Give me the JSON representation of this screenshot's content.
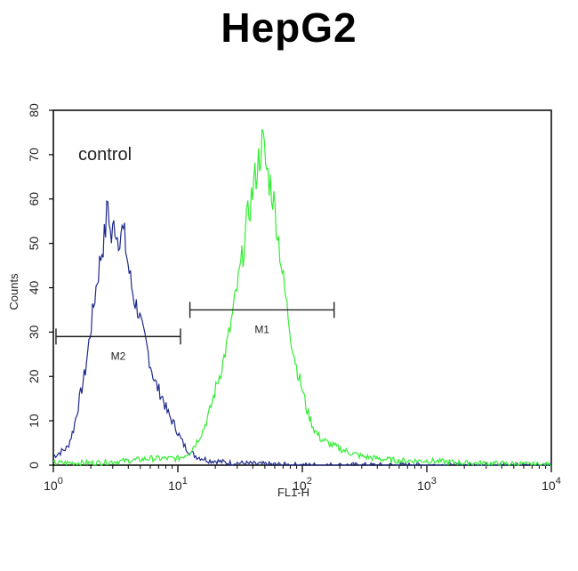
{
  "chart_data": {
    "type": "line",
    "title": "HepG2",
    "xlabel": "FL1-H",
    "ylabel": "Counts",
    "x_scale": "log",
    "xlim": [
      1,
      10000
    ],
    "ylim": [
      0,
      80
    ],
    "x_ticks": [
      {
        "value": 1,
        "base": "10",
        "exp": "0"
      },
      {
        "value": 10,
        "base": "10",
        "exp": "1"
      },
      {
        "value": 100,
        "base": "10",
        "exp": "2"
      },
      {
        "value": 1000,
        "base": "10",
        "exp": "3"
      },
      {
        "value": 10000,
        "base": "10",
        "exp": "4"
      }
    ],
    "y_ticks": [
      "0",
      "10",
      "20",
      "30",
      "40",
      "50",
      "60",
      "70",
      "80"
    ],
    "annotation": "control",
    "series": [
      {
        "color": "#1f2a8c",
        "x": [
          1.0,
          1.15,
          1.3,
          1.45,
          1.6,
          1.8,
          2.0,
          2.2,
          2.4,
          2.6,
          2.75,
          2.9,
          3.1,
          3.3,
          3.5,
          3.7,
          3.9,
          4.2,
          4.5,
          4.8,
          5.2,
          5.6,
          6.0,
          6.5,
          7.0,
          7.6,
          8.2,
          9.0,
          9.8,
          10.5,
          11.5,
          12.5,
          14,
          16,
          18,
          20,
          25,
          30,
          40,
          50,
          70,
          100,
          150,
          300,
          1000,
          10000
        ],
        "y": [
          2,
          3,
          4,
          8,
          14,
          21,
          31,
          40,
          47,
          52,
          60,
          50,
          55,
          51,
          53,
          52,
          47,
          41,
          37,
          35,
          30,
          27,
          23,
          19,
          17,
          15,
          12,
          10,
          8,
          6,
          4,
          3,
          2,
          1.5,
          1,
          1,
          0.5,
          0.5,
          0.3,
          0.2,
          0.1,
          0,
          0,
          0,
          0,
          0
        ]
      },
      {
        "color": "#33ee33",
        "x": [
          1.0,
          2.0,
          4.0,
          6.0,
          8.0,
          10,
          11,
          12.5,
          14,
          16,
          18,
          20,
          23,
          26,
          30,
          33,
          36,
          40,
          44,
          48,
          52,
          56,
          60,
          65,
          70,
          75,
          82,
          90,
          100,
          110,
          125,
          140,
          160,
          190,
          230,
          300,
          400,
          600,
          1000,
          2000,
          5000,
          10000
        ],
        "y": [
          0.5,
          0.5,
          1,
          1.5,
          1.5,
          1.5,
          2,
          3,
          5,
          8,
          12,
          17,
          23,
          30,
          40,
          47,
          55,
          62,
          68,
          73,
          66,
          63,
          58,
          50,
          42,
          36,
          28,
          22,
          17,
          12,
          8,
          6,
          5,
          4,
          3,
          2,
          1.5,
          1,
          1,
          0.5,
          0.3,
          0
        ]
      }
    ],
    "gates": [
      {
        "label": "M2",
        "x_start": 1.05,
        "x_end": 10.5,
        "y": 29
      },
      {
        "label": "M1",
        "x_start": 12.5,
        "x_end": 180,
        "y": 35
      }
    ]
  }
}
